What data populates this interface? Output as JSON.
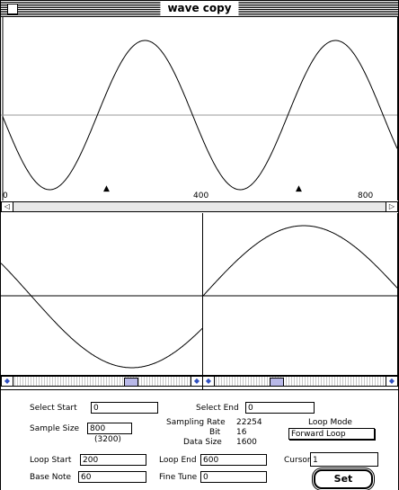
{
  "window": {
    "title": "wave copy"
  },
  "overview": {
    "axis_labels": [
      "0",
      "400",
      "800"
    ],
    "loop_markers": [
      "▲",
      "▲"
    ]
  },
  "controls": {
    "select_start_label": "Select Start",
    "select_start_value": "0",
    "select_end_label": "Select End",
    "select_end_value": "0",
    "sample_size_label": "Sample Size",
    "sample_size_value": "800",
    "sample_size_bytes": "(3200)",
    "sampling_rate_label": "Sampling Rate",
    "sampling_rate_value": "22254",
    "bit_label": "Bit",
    "bit_value": "16",
    "data_size_label": "Data Size",
    "data_size_value": "1600",
    "loop_mode_label": "Loop Mode",
    "loop_mode_value": "Forward Loop",
    "loop_start_label": "Loop Start",
    "loop_start_value": "200",
    "loop_end_label": "Loop End",
    "loop_end_value": "600",
    "cursor_label": "Cursor",
    "cursor_value": "1",
    "base_note_label": "Base Note",
    "base_note_value": "60",
    "fine_tune_label": "Fine Tune",
    "fine_tune_value": "0",
    "set_label": "Set"
  },
  "icons": {
    "close": "close-box-icon",
    "scroll_left": "left-arrow-icon",
    "scroll_right": "right-arrow-icon"
  }
}
